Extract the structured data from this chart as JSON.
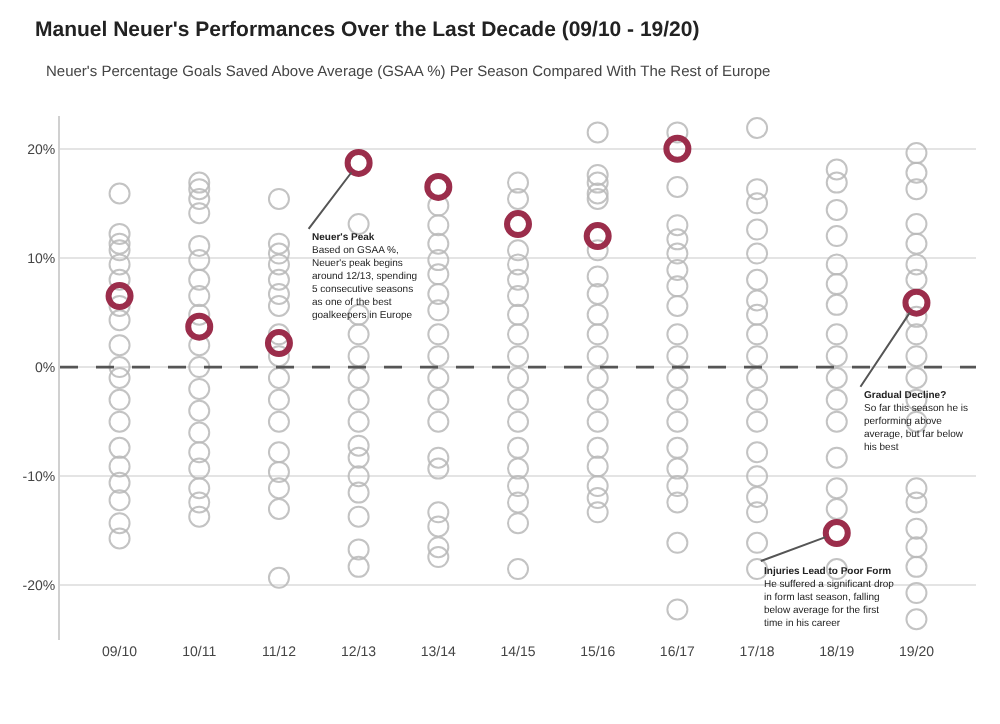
{
  "chart_data": {
    "type": "scatter",
    "title": "Manuel Neuer's Performances Over the Last Decade (09/10 - 19/20)",
    "subtitle": "Neuer's Percentage Goals Saved Above Average (GSAA %) Per Season Compared With The Rest of Europe",
    "categories": [
      "09/10",
      "10/11",
      "11/12",
      "12/13",
      "13/14",
      "14/15",
      "15/16",
      "16/17",
      "17/18",
      "18/19",
      "19/20"
    ],
    "series": [
      {
        "color": "#b8b8b8",
        "x": [
          "09/10",
          "09/10",
          "09/10",
          "09/10",
          "09/10",
          "09/10",
          "09/10",
          "09/10",
          "09/10",
          "09/10",
          "09/10",
          "09/10",
          "09/10",
          "09/10",
          "09/10",
          "09/10",
          "09/10",
          "09/10",
          "09/10",
          "10/11",
          "10/11",
          "10/11",
          "10/11",
          "10/11",
          "10/11",
          "10/11",
          "10/11",
          "10/11",
          "10/11",
          "10/11",
          "10/11",
          "10/11",
          "10/11",
          "10/11",
          "10/11",
          "10/11",
          "10/11",
          "10/11",
          "11/12",
          "11/12",
          "11/12",
          "11/12",
          "11/12",
          "11/12",
          "11/12",
          "11/12",
          "11/12",
          "11/12",
          "11/12",
          "11/12",
          "11/12",
          "11/12",
          "11/12",
          "11/12",
          "11/12",
          "12/13",
          "12/13",
          "12/13",
          "12/13",
          "12/13",
          "12/13",
          "12/13",
          "12/13",
          "12/13",
          "12/13",
          "12/13",
          "12/13",
          "12/13",
          "12/13",
          "13/14",
          "13/14",
          "13/14",
          "13/14",
          "13/14",
          "13/14",
          "13/14",
          "13/14",
          "13/14",
          "13/14",
          "13/14",
          "13/14",
          "13/14",
          "13/14",
          "13/14",
          "13/14",
          "13/14",
          "13/14",
          "14/15",
          "14/15",
          "14/15",
          "14/15",
          "14/15",
          "14/15",
          "14/15",
          "14/15",
          "14/15",
          "14/15",
          "14/15",
          "14/15",
          "14/15",
          "14/15",
          "14/15",
          "14/15",
          "14/15",
          "14/15",
          "15/16",
          "15/16",
          "15/16",
          "15/16",
          "15/16",
          "15/16",
          "15/16",
          "15/16",
          "15/16",
          "15/16",
          "15/16",
          "15/16",
          "15/16",
          "15/16",
          "15/16",
          "15/16",
          "15/16",
          "15/16",
          "15/16",
          "16/17",
          "16/17",
          "16/17",
          "16/17",
          "16/17",
          "16/17",
          "16/17",
          "16/17",
          "16/17",
          "16/17",
          "16/17",
          "16/17",
          "16/17",
          "16/17",
          "16/17",
          "16/17",
          "16/17",
          "16/17",
          "16/17",
          "17/18",
          "17/18",
          "17/18",
          "17/18",
          "17/18",
          "17/18",
          "17/18",
          "17/18",
          "17/18",
          "17/18",
          "17/18",
          "17/18",
          "17/18",
          "17/18",
          "17/18",
          "17/18",
          "17/18",
          "17/18",
          "17/18",
          "18/19",
          "18/19",
          "18/19",
          "18/19",
          "18/19",
          "18/19",
          "18/19",
          "18/19",
          "18/19",
          "18/19",
          "18/19",
          "18/19",
          "18/19",
          "18/19",
          "18/19",
          "18/19",
          "19/20",
          "19/20",
          "19/20",
          "19/20",
          "19/20",
          "19/20",
          "19/20",
          "19/20",
          "19/20",
          "19/20",
          "19/20",
          "19/20",
          "19/20",
          "19/20",
          "19/20",
          "19/20",
          "19/20",
          "19/20",
          "19/20",
          "19/20"
        ],
        "values": [
          15.9,
          12.2,
          11.3,
          10.7,
          9.4,
          8.0,
          5.6,
          4.3,
          2,
          0,
          -1,
          -3,
          -5,
          -7.4,
          -9.1,
          -10.6,
          -12.2,
          -14.3,
          -15.7,
          16.9,
          16.3,
          15.4,
          14.1,
          11.1,
          9.8,
          8.0,
          6.5,
          4.8,
          2,
          0,
          -2,
          -4,
          -6,
          -7.8,
          -9.3,
          -11.1,
          -12.4,
          -13.7,
          15.4,
          11.3,
          10.4,
          9.4,
          8.0,
          6.7,
          5.6,
          3,
          1,
          -1,
          -3,
          -5,
          -7.8,
          -9.6,
          -11.1,
          -13.0,
          -19.3,
          13.1,
          4.8,
          3,
          1,
          -1,
          -3,
          -5,
          -7.2,
          -8.3,
          -10.0,
          -11.5,
          -13.7,
          -16.7,
          -18.3,
          14.8,
          13.0,
          11.3,
          9.8,
          8.5,
          6.7,
          5.2,
          3,
          1,
          -1,
          -3,
          -5,
          -8.3,
          -9.3,
          -13.3,
          -14.6,
          -16.5,
          -17.4,
          16.9,
          15.4,
          10.7,
          9.4,
          8.0,
          6.5,
          4.8,
          3,
          1,
          -1,
          -3,
          -5,
          -7.4,
          -9.3,
          -10.9,
          -12.4,
          -14.3,
          -18.5,
          21.5,
          17.6,
          16.9,
          15.9,
          15.4,
          10.7,
          8.3,
          6.7,
          4.8,
          3,
          1,
          -1,
          -3,
          -5,
          -7.4,
          -9.1,
          -10.9,
          -12.0,
          -13.3,
          21.5,
          16.5,
          13.0,
          11.7,
          10.4,
          8.9,
          7.4,
          5.6,
          3,
          1,
          -1,
          -3,
          -5,
          -7.4,
          -9.3,
          -10.9,
          -12.4,
          -16.1,
          -22.2,
          21.9,
          16.3,
          15.0,
          12.6,
          10.4,
          8.0,
          6.1,
          4.8,
          3,
          1,
          -1,
          -3,
          -5,
          -7.8,
          -10.0,
          -11.9,
          -13.3,
          -16.1,
          -18.5,
          18.1,
          16.9,
          14.4,
          12.0,
          9.4,
          7.6,
          5.7,
          3,
          1,
          -1,
          -3,
          -5,
          -8.3,
          -11.1,
          -13.0,
          -18.5,
          19.6,
          17.8,
          16.3,
          13.1,
          11.3,
          9.4,
          8.0,
          4.6,
          3,
          1,
          -1,
          -3,
          -5,
          -11.1,
          -12.4,
          -14.8,
          -16.5,
          -18.3,
          -20.7,
          -23.1
        ]
      },
      {
        "color": "#9b2d4b",
        "values": [
          6.5,
          3.7,
          2.2,
          18.7,
          16.5,
          13.1,
          12.0,
          20.0,
          null,
          -15.2,
          5.9
        ]
      }
    ],
    "ylim": [
      -25,
      23
    ],
    "yticks": [
      {
        "value": -20,
        "label": "-20%"
      },
      {
        "value": -10,
        "label": "-10%"
      },
      {
        "value": 0,
        "label": "0%"
      },
      {
        "value": 10,
        "label": "10%"
      },
      {
        "value": 20,
        "label": "20%"
      }
    ],
    "grid": "y",
    "marker": "circle",
    "ref_lines": [
      {
        "axis": "y",
        "value": 0,
        "color": "#555555",
        "line_style": "dashed"
      }
    ],
    "annotations": [
      {
        "text": "Neuer's Peak\nBased on GSAA %,\nNeuer's peak begins\naround 12/13, spending\n5 consecutive seasons\nas one of the best\ngoalkeepers in Europe",
        "x": "12/13",
        "y": 18.7
      },
      {
        "text": "Gradual Decline?\nSo far this season he is\nperforming above\naverage, but far below\nhis best",
        "x": "19/20",
        "y": 5.9
      },
      {
        "text": "Injuries Lead to Poor Form\nHe suffered a significant drop\nin form last season, falling\nbelow average for the first\ntime in his career",
        "x": "18/19",
        "y": -15.2
      }
    ]
  }
}
